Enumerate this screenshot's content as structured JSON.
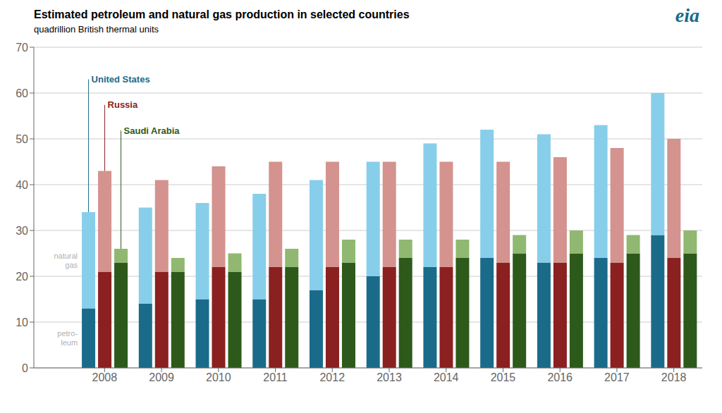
{
  "chart_data": {
    "type": "bar",
    "stacked": true,
    "grid": true,
    "title": "Estimated petroleum and natural gas production in selected countries",
    "subtitle": "quadrillion British thermal units",
    "categories": [
      2008,
      2009,
      2010,
      2011,
      2012,
      2013,
      2014,
      2015,
      2016,
      2017,
      2018
    ],
    "segments": [
      {
        "name": "petro-\nleum",
        "color": "#b0b0b0"
      },
      {
        "name": "natural\ngas",
        "color": "#b0b0b0"
      }
    ],
    "series": [
      {
        "name": "United States",
        "color": "#1a6b8a",
        "colors": [
          "#1a6b8a",
          "#87ceeb"
        ],
        "values": [
          [
            13,
            14,
            15,
            15,
            17,
            20,
            22,
            24,
            23,
            24,
            29
          ],
          [
            21,
            21,
            21,
            23,
            24,
            25,
            27,
            28,
            28,
            29,
            31
          ]
        ]
      },
      {
        "name": "Russia",
        "color": "#8b2020",
        "colors": [
          "#8b2020",
          "#d4938e"
        ],
        "values": [
          [
            21,
            21,
            22,
            22,
            22,
            22,
            22,
            23,
            23,
            23,
            24
          ],
          [
            22,
            20,
            22,
            23,
            23,
            23,
            23,
            22,
            23,
            25,
            26
          ]
        ]
      },
      {
        "name": "Saudi Arabia",
        "color": "#2d5a1b",
        "colors": [
          "#2d5a1b",
          "#90b870"
        ],
        "values": [
          [
            23,
            21,
            21,
            22,
            23,
            24,
            24,
            25,
            25,
            25,
            25
          ],
          [
            3,
            3,
            4,
            4,
            5,
            4,
            4,
            4,
            5,
            4,
            5
          ]
        ]
      }
    ],
    "ylim": [
      0,
      70
    ],
    "yticks": [
      0,
      10,
      20,
      30,
      40,
      50,
      60,
      70
    ],
    "annotations": [
      {
        "text": "eia",
        "color": "#1a6b8a"
      }
    ]
  }
}
